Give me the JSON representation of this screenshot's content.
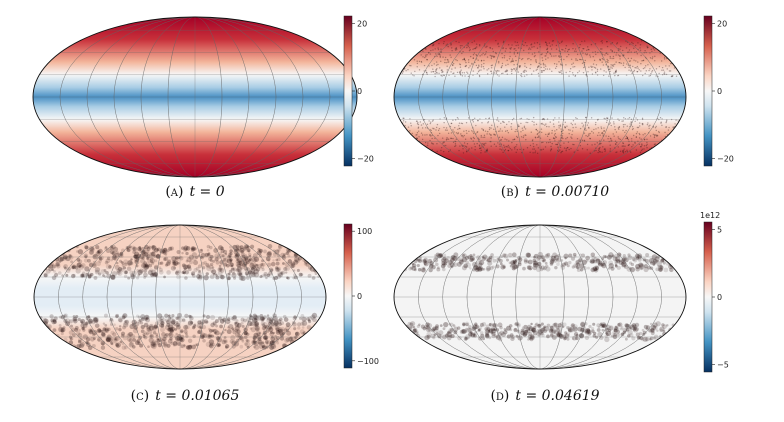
{
  "figure": {
    "panels": [
      {
        "id": "a",
        "label": "(a)",
        "equation": "t = 0",
        "colormap": "RdBu_r",
        "pattern": "smooth-bands",
        "colorbar": {
          "ticks": [
            "20",
            "0",
            "−20"
          ],
          "exponent": ""
        },
        "colors": {
          "pole": "#a50026",
          "mid": "#f7f7f7",
          "equator": "#4a90c4"
        }
      },
      {
        "id": "b",
        "label": "(b)",
        "equation": "t = 0.00710",
        "colormap": "RdBu_r",
        "pattern": "bands-with-speckle",
        "colorbar": {
          "ticks": [
            "20",
            "0",
            "−20"
          ],
          "exponent": ""
        },
        "colors": {
          "pole": "#a50026",
          "mid": "#f7f7f7",
          "equator": "#4a90c4"
        }
      },
      {
        "id": "c",
        "label": "(c)",
        "equation": "t = 0.01065",
        "colormap": "RdBu_r",
        "pattern": "pale-bands-with-speckle",
        "colorbar": {
          "ticks": [
            "100",
            "0",
            "−100"
          ],
          "exponent": ""
        },
        "colors": {
          "pole": "#f6d2c2",
          "mid": "#f7f7f7",
          "equator": "#e3edf5"
        }
      },
      {
        "id": "d",
        "label": "(d)",
        "equation": "t = 0.04619",
        "colormap": "RdBu_r",
        "pattern": "neutral-with-dark-bands",
        "colorbar": {
          "ticks": [
            "5",
            "0",
            "−5"
          ],
          "exponent": "1e12"
        },
        "colors": {
          "pole": "#f4f4f4",
          "mid": "#f4f4f4",
          "equator": "#f4f4f4"
        }
      }
    ]
  }
}
